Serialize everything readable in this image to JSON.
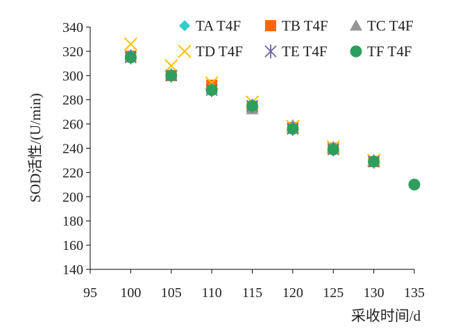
{
  "chart_data": {
    "type": "scatter",
    "xlabel": "采收时间/d",
    "ylabel": "SOD活性/(U/min)",
    "xlim": [
      95,
      135
    ],
    "ylim": [
      140,
      340
    ],
    "xticks": [
      95,
      100,
      105,
      110,
      115,
      120,
      125,
      130,
      135
    ],
    "yticks": [
      140,
      160,
      180,
      200,
      220,
      240,
      260,
      280,
      300,
      320,
      340
    ],
    "grid": false,
    "legend_position": "top-right",
    "series": [
      {
        "name": "TA T4F",
        "marker": "diamond",
        "color": "#33CCCC",
        "points": [
          [
            100,
            316
          ],
          [
            105,
            301
          ],
          [
            110,
            290
          ],
          [
            115,
            274
          ],
          [
            120,
            258
          ],
          [
            125,
            240
          ],
          [
            130,
            229
          ]
        ]
      },
      {
        "name": "TB T4F",
        "marker": "square",
        "color": "#FF6600",
        "points": [
          [
            100,
            316
          ],
          [
            105,
            300
          ],
          [
            110,
            292
          ],
          [
            115,
            274
          ],
          [
            120,
            257
          ],
          [
            125,
            240
          ],
          [
            130,
            229
          ]
        ]
      },
      {
        "name": "TC T4F",
        "marker": "triangle",
        "color": "#969696",
        "points": [
          [
            100,
            317
          ],
          [
            105,
            301
          ],
          [
            110,
            289
          ],
          [
            115,
            272
          ],
          [
            120,
            259
          ],
          [
            125,
            241
          ],
          [
            130,
            230
          ]
        ]
      },
      {
        "name": "TD T4F",
        "marker": "x",
        "color": "#FFC000",
        "points": [
          [
            100,
            326
          ],
          [
            105,
            308
          ],
          [
            110,
            294
          ],
          [
            115,
            278
          ],
          [
            120,
            258
          ],
          [
            125,
            241
          ],
          [
            130,
            230
          ]
        ]
      },
      {
        "name": "TE T4F",
        "marker": "star",
        "color": "#6666AA",
        "points": [
          [
            100,
            315
          ],
          [
            105,
            300
          ],
          [
            110,
            288
          ],
          [
            115,
            275
          ],
          [
            120,
            256
          ],
          [
            125,
            239
          ],
          [
            130,
            229
          ]
        ]
      },
      {
        "name": "TF T4F",
        "marker": "circle",
        "color": "#2E9E5E",
        "points": [
          [
            100,
            315
          ],
          [
            105,
            300
          ],
          [
            110,
            288
          ],
          [
            115,
            275
          ],
          [
            120,
            256
          ],
          [
            125,
            239
          ],
          [
            130,
            229
          ],
          [
            135,
            210
          ]
        ]
      }
    ]
  }
}
